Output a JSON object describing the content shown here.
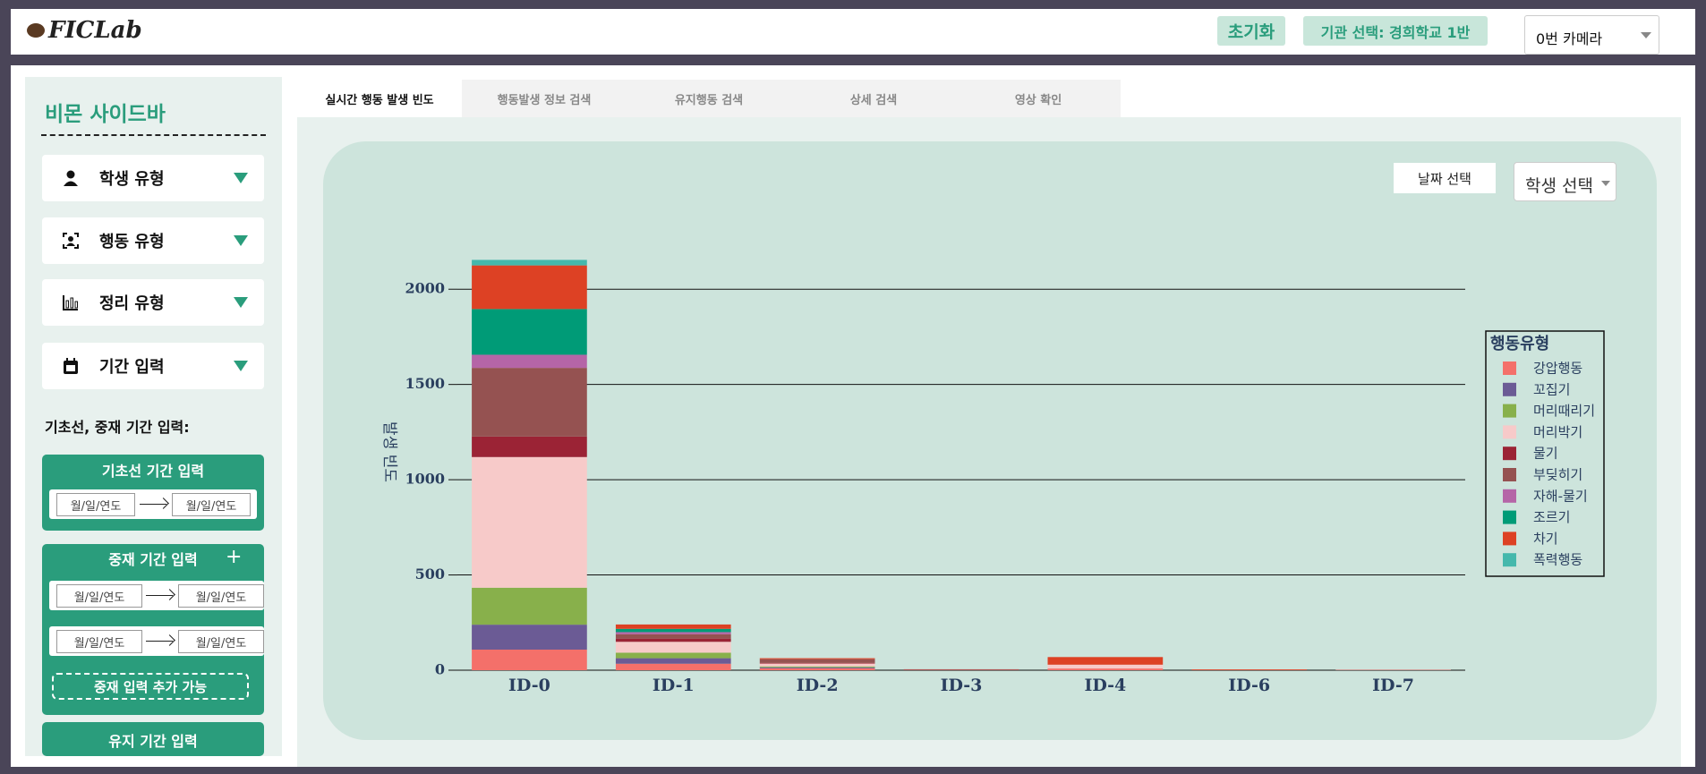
{
  "header": {
    "logo": "FICLab",
    "reset_button": "초기화",
    "org_select": "기관 선택: 경희학교 1반",
    "camera_select": "0번 카메라"
  },
  "sidebar": {
    "title": "비몬 사이드바",
    "filters": [
      "학생 유형",
      "행동 유형",
      "정리 유형",
      "기간 입력"
    ],
    "period_heading": "기초선, 중재 기간 입력:",
    "baseline": {
      "title": "기초선 기간 입력",
      "from": "월/일/연도",
      "to": "월/일/연도"
    },
    "intervention": {
      "title": "중재 기간 입력",
      "rows": [
        {
          "from": "월/일/연도",
          "to": "월/일/연도"
        },
        {
          "from": "월/일/연도",
          "to": "월/일/연도"
        }
      ],
      "add_hint": "중재 입력 추가 가능"
    },
    "maintenance": {
      "title": "유지 기간 입력"
    }
  },
  "tabs": [
    "실시간 행동 발생 빈도",
    "행동발생 정보 검색",
    "유지행동 검색",
    "상세 검색",
    "영상 확인"
  ],
  "controls": {
    "date_button": "날짜 선택",
    "student_select": "학생 선택"
  },
  "chart_data": {
    "type": "bar",
    "stacked": true,
    "y_label": "발생 빈도",
    "categories": [
      "ID-0",
      "ID-1",
      "ID-2",
      "ID-3",
      "ID-4",
      "ID-6",
      "ID-7"
    ],
    "series": [
      {
        "name": "강압행동",
        "color": "#f4706a",
        "values": [
          108,
          34,
          10,
          2,
          9,
          0,
          2
        ]
      },
      {
        "name": "꼬집기",
        "color": "#6b5b95",
        "values": [
          131,
          29,
          5,
          0,
          0,
          0,
          0
        ]
      },
      {
        "name": "머리때리기",
        "color": "#88b04b",
        "values": [
          194,
          29,
          5,
          0,
          0,
          0,
          0
        ]
      },
      {
        "name": "머리박기",
        "color": "#f7cac9",
        "values": [
          686,
          57,
          15,
          0,
          20,
          0,
          0
        ]
      },
      {
        "name": "물기",
        "color": "#9b2335",
        "values": [
          108,
          17,
          3,
          0,
          0,
          0,
          0
        ]
      },
      {
        "name": "부딪히기",
        "color": "#955251",
        "values": [
          360,
          23,
          20,
          3,
          0,
          0,
          0
        ]
      },
      {
        "name": "자해-물기",
        "color": "#b565a7",
        "values": [
          69,
          11,
          0,
          0,
          0,
          0,
          0
        ]
      },
      {
        "name": "조르기",
        "color": "#009b77",
        "values": [
          240,
          17,
          0,
          0,
          0,
          0,
          0
        ]
      },
      {
        "name": "차기",
        "color": "#dd4124",
        "values": [
          229,
          23,
          5,
          0,
          40,
          4,
          0
        ]
      },
      {
        "name": "폭력행동",
        "color": "#45b8ac",
        "values": [
          29,
          0,
          0,
          0,
          0,
          0,
          0
        ]
      }
    ],
    "ylim": [
      0,
      2250
    ],
    "yticks": [
      0,
      500,
      1000,
      1500,
      2000
    ],
    "grid": true,
    "legend_title": "행동유형",
    "legend": "right"
  }
}
